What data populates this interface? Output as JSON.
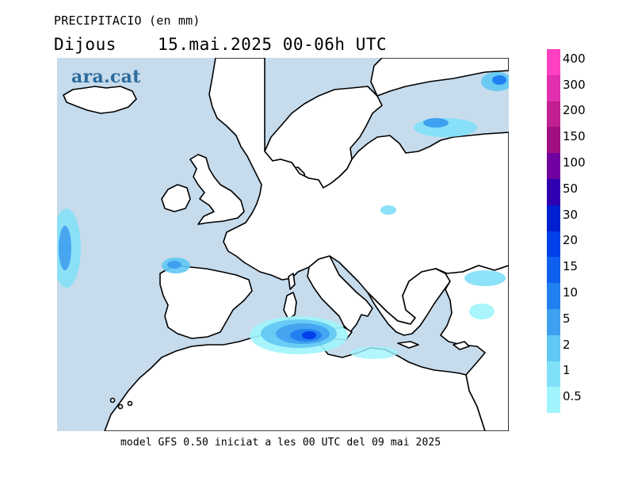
{
  "header": {
    "variable": "PRECIPITACIO (en mm)",
    "day": "Dijous",
    "date": "15.mai.2025 00-06h UTC"
  },
  "footer": {
    "model_text": "model GFS 0.50 iniciat a les 00 UTC del 09 mai 2025"
  },
  "map": {
    "logo": "ara.cat",
    "ocean_color": "#c6dbec",
    "land_color": "#ffffff",
    "coast_color": "#000000"
  },
  "legend": {
    "items": [
      {
        "label": "400",
        "color": "#ff40c0"
      },
      {
        "label": "300",
        "color": "#e030b0"
      },
      {
        "label": "200",
        "color": "#c02090"
      },
      {
        "label": "150",
        "color": "#a01080"
      },
      {
        "label": "100",
        "color": "#7000a0"
      },
      {
        "label": "50",
        "color": "#3000b0"
      },
      {
        "label": "30",
        "color": "#0020d0"
      },
      {
        "label": "20",
        "color": "#0040e8"
      },
      {
        "label": "15",
        "color": "#1060f0"
      },
      {
        "label": "10",
        "color": "#2080f0"
      },
      {
        "label": "5",
        "color": "#40a0f0"
      },
      {
        "label": "2",
        "color": "#60c8f4"
      },
      {
        "label": "1",
        "color": "#80e0f8"
      },
      {
        "label": "0.5",
        "color": "#a0f4fc"
      }
    ]
  }
}
